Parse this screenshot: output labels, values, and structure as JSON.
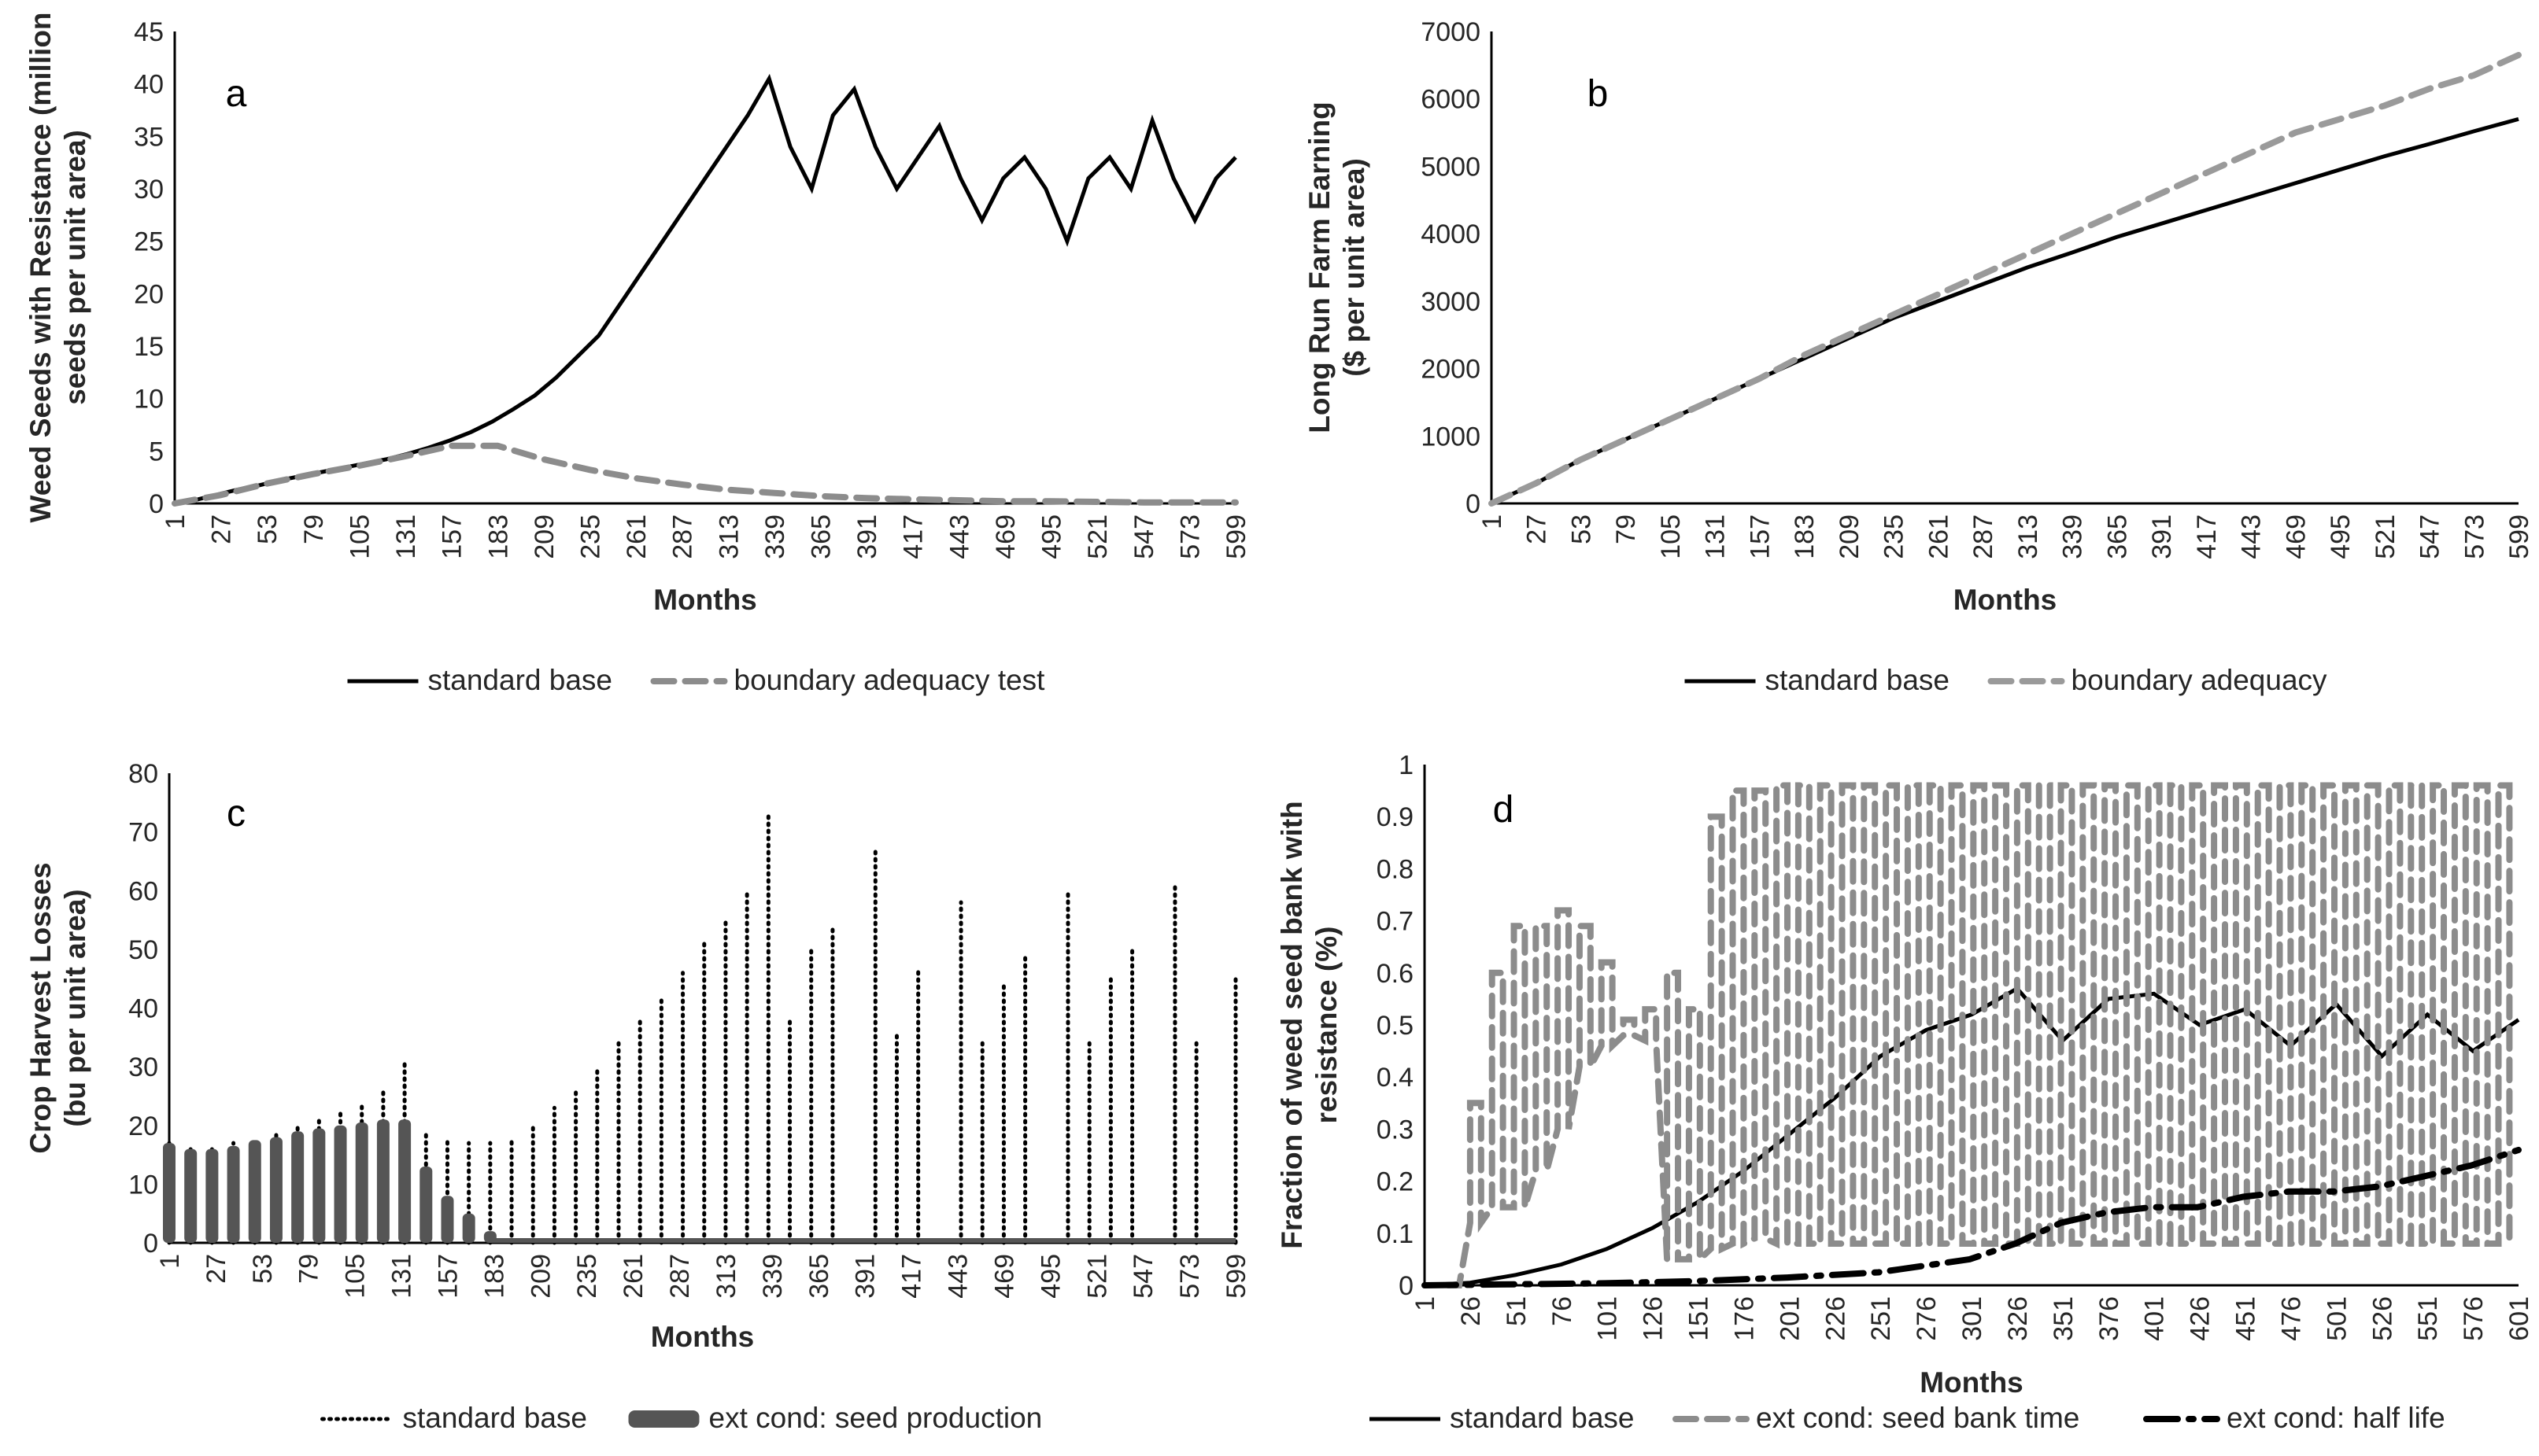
{
  "chart_data": [
    {
      "id": "a",
      "type": "line",
      "panel_label": "a",
      "xlabel": "Months",
      "ylabel": "Weed Seeds with Resistance (million seeds per unit area)",
      "ylabel_lines": [
        "Weed Seeds with Resistance (million",
        "seeds per unit area)"
      ],
      "xlim": [
        1,
        599
      ],
      "ylim": [
        0,
        45
      ],
      "yticks": [
        0,
        5,
        10,
        15,
        20,
        25,
        30,
        35,
        40,
        45
      ],
      "xticks": [
        1,
        27,
        53,
        79,
        105,
        131,
        157,
        183,
        209,
        235,
        261,
        287,
        313,
        339,
        365,
        391,
        417,
        443,
        469,
        495,
        521,
        547,
        573,
        599
      ],
      "legend_position": "bottom",
      "series": [
        {
          "name": "standard base",
          "style": "solid",
          "color": "#000000",
          "x": [
            1,
            12,
            24,
            36,
            48,
            60,
            72,
            84,
            96,
            108,
            120,
            132,
            144,
            156,
            168,
            180,
            192,
            204,
            216,
            228,
            240,
            252,
            264,
            276,
            288,
            300,
            312,
            324,
            336,
            348,
            360,
            372,
            384,
            396,
            408,
            420,
            432,
            444,
            456,
            468,
            480,
            492,
            504,
            516,
            528,
            540,
            552,
            564,
            576,
            588,
            599
          ],
          "y": [
            0,
            0.3,
            0.8,
            1.3,
            1.7,
            2.2,
            2.6,
            3.0,
            3.4,
            3.8,
            4.2,
            4.7,
            5.3,
            6.0,
            6.8,
            7.8,
            9.0,
            10.3,
            12.0,
            14.0,
            16.0,
            19.0,
            22.0,
            25.0,
            28.0,
            31.0,
            34.0,
            37.0,
            40.5,
            34.0,
            30.0,
            37.0,
            39.5,
            34.0,
            30.0,
            33.0,
            36.0,
            31.0,
            27.0,
            31.0,
            33.0,
            30.0,
            25.0,
            31.0,
            33.0,
            30.0,
            36.5,
            31.0,
            27.0,
            31.0,
            33.0
          ]
        },
        {
          "name": "boundary adequacy test",
          "style": "dashed",
          "color": "#8c8c8c",
          "x": [
            1,
            27,
            53,
            79,
            105,
            131,
            157,
            183,
            209,
            235,
            261,
            287,
            313,
            339,
            365,
            391,
            417,
            443,
            469,
            495,
            521,
            547,
            573,
            599
          ],
          "y": [
            0,
            0.8,
            1.9,
            2.8,
            3.6,
            4.5,
            5.5,
            5.5,
            4.2,
            3.2,
            2.4,
            1.8,
            1.3,
            1.0,
            0.7,
            0.5,
            0.4,
            0.3,
            0.2,
            0.2,
            0.15,
            0.1,
            0.1,
            0.1
          ]
        }
      ]
    },
    {
      "id": "b",
      "type": "line",
      "panel_label": "b",
      "xlabel": "Months",
      "ylabel": "Long Run Farm Earning ($ per unit area)",
      "ylabel_lines": [
        "Long Run Farm Earning",
        "($ per unit area)"
      ],
      "xlim": [
        1,
        599
      ],
      "ylim": [
        0,
        7000
      ],
      "yticks": [
        0,
        1000,
        2000,
        3000,
        4000,
        5000,
        6000,
        7000
      ],
      "xticks": [
        1,
        27,
        53,
        79,
        105,
        131,
        157,
        183,
        209,
        235,
        261,
        287,
        313,
        339,
        365,
        391,
        417,
        443,
        469,
        495,
        521,
        547,
        573,
        599
      ],
      "legend_position": "bottom",
      "series": [
        {
          "name": "standard base",
          "style": "solid",
          "color": "#000000",
          "x": [
            1,
            27,
            53,
            79,
            105,
            131,
            157,
            183,
            209,
            235,
            261,
            287,
            313,
            339,
            365,
            391,
            417,
            443,
            469,
            495,
            521,
            547,
            573,
            599
          ],
          "y": [
            0,
            300,
            650,
            950,
            1250,
            1550,
            1850,
            2150,
            2450,
            2750,
            3000,
            3250,
            3500,
            3720,
            3950,
            4150,
            4350,
            4550,
            4750,
            4950,
            5150,
            5330,
            5520,
            5700
          ]
        },
        {
          "name": "boundary adequacy",
          "style": "dashed",
          "color": "#9a9a9a",
          "x": [
            1,
            27,
            53,
            79,
            105,
            131,
            157,
            183,
            209,
            235,
            261,
            287,
            313,
            339,
            365,
            391,
            417,
            443,
            469,
            495,
            521,
            547,
            573,
            599
          ],
          "y": [
            0,
            300,
            650,
            950,
            1250,
            1550,
            1850,
            2200,
            2500,
            2800,
            3100,
            3400,
            3700,
            4000,
            4300,
            4600,
            4900,
            5200,
            5500,
            5700,
            5900,
            6150,
            6350,
            6650
          ]
        }
      ]
    },
    {
      "id": "c",
      "type": "bar",
      "panel_label": "c",
      "xlabel": "Months",
      "ylabel": "Crop Harvest Losses (bu per unit area)",
      "ylabel_lines": [
        "Crop Harvest Losses",
        "(bu per unit area)"
      ],
      "xlim": [
        1,
        599
      ],
      "ylim": [
        0,
        80
      ],
      "yticks": [
        0,
        10,
        20,
        30,
        40,
        50,
        60,
        70,
        80
      ],
      "xticks": [
        1,
        27,
        53,
        79,
        105,
        131,
        157,
        183,
        209,
        235,
        261,
        287,
        313,
        339,
        365,
        391,
        417,
        443,
        469,
        495,
        521,
        547,
        573,
        599
      ],
      "legend_position": "bottom",
      "series": [
        {
          "name": "standard base",
          "style": "dotted",
          "color": "#000000",
          "x": [
            1,
            13,
            25,
            37,
            49,
            61,
            73,
            85,
            97,
            109,
            121,
            133,
            145,
            157,
            169,
            181,
            193,
            205,
            217,
            229,
            241,
            253,
            265,
            277,
            289,
            301,
            313,
            325,
            337,
            349,
            361,
            373,
            385,
            397,
            409,
            421,
            433,
            445,
            457,
            469,
            481,
            493,
            505,
            517,
            529,
            541,
            553,
            565,
            577,
            589,
            599
          ],
          "y": [
            17,
            16,
            16.5,
            17,
            18,
            19,
            20,
            21,
            22.5,
            24,
            26,
            31,
            19,
            18,
            17,
            17,
            18,
            20,
            23,
            26,
            30,
            34,
            38,
            42,
            46,
            51,
            55,
            60,
            73,
            38,
            50,
            54,
            0,
            67,
            36,
            47,
            0,
            58,
            34,
            44,
            49,
            0,
            60,
            34,
            45,
            50,
            0,
            61,
            34,
            0,
            45
          ]
        },
        {
          "name": "ext cond: seed production",
          "style": "bar",
          "color": "#555555",
          "x": [
            1,
            13,
            25,
            37,
            49,
            61,
            73,
            85,
            97,
            109,
            121,
            133,
            145,
            157,
            169,
            181
          ],
          "y": [
            17,
            16,
            16,
            16.5,
            17.5,
            18,
            19,
            19.5,
            20,
            20.5,
            21,
            21,
            13,
            8,
            5,
            2
          ]
        }
      ]
    },
    {
      "id": "d",
      "type": "line",
      "panel_label": "d",
      "xlabel": "Months",
      "ylabel": "Fraction of weed seed bank with resistance (%)",
      "ylabel_lines": [
        "Fraction of weed seed bank with",
        "resistance (%)"
      ],
      "xlim": [
        1,
        601
      ],
      "ylim": [
        0,
        1
      ],
      "yticks": [
        0,
        0.1,
        0.2,
        0.3,
        0.4,
        0.5,
        0.6,
        0.7,
        0.8,
        0.9,
        1
      ],
      "xticks": [
        1,
        26,
        51,
        76,
        101,
        126,
        151,
        176,
        201,
        226,
        251,
        276,
        301,
        326,
        351,
        376,
        401,
        426,
        451,
        476,
        501,
        526,
        551,
        576,
        601
      ],
      "legend_position": "bottom",
      "series": [
        {
          "name": "standard base",
          "style": "solid",
          "color": "#000000",
          "x": [
            1,
            26,
            51,
            76,
            101,
            126,
            151,
            176,
            201,
            226,
            251,
            276,
            301,
            326,
            351,
            376,
            401,
            426,
            451,
            476,
            501,
            526,
            551,
            576,
            601
          ],
          "y": [
            0,
            0.005,
            0.02,
            0.04,
            0.07,
            0.11,
            0.16,
            0.22,
            0.29,
            0.36,
            0.44,
            0.49,
            0.52,
            0.57,
            0.47,
            0.55,
            0.56,
            0.5,
            0.53,
            0.46,
            0.54,
            0.44,
            0.52,
            0.45,
            0.51
          ]
        },
        {
          "name": "ext cond: seed bank time",
          "style": "dashed",
          "color": "#8c8c8c",
          "cycle_x": [
            14,
            26,
            38,
            50,
            62,
            74,
            86,
            98,
            110,
            122,
            134,
            146,
            158,
            170,
            182,
            194,
            206,
            218,
            230,
            242,
            254,
            266,
            278,
            290,
            302,
            314,
            326,
            338,
            350,
            362,
            374,
            386,
            398,
            410,
            422,
            434,
            446,
            458,
            470,
            482,
            494,
            506,
            518,
            530,
            542,
            554,
            566,
            578,
            590
          ],
          "cycle_high": [
            0.0,
            0.35,
            0.6,
            0.69,
            0.69,
            0.72,
            0.69,
            0.62,
            0.51,
            0.53,
            0.6,
            0.53,
            0.9,
            0.95,
            0.95,
            0.96,
            0.96,
            0.96,
            0.96,
            0.96,
            0.96,
            0.96,
            0.96,
            0.96,
            0.96,
            0.96,
            0.96,
            0.96,
            0.96,
            0.96,
            0.96,
            0.96,
            0.96,
            0.96,
            0.96,
            0.96,
            0.96,
            0.96,
            0.96,
            0.96,
            0.96,
            0.96,
            0.96,
            0.96,
            0.96,
            0.96,
            0.96,
            0.96,
            0.96
          ],
          "cycle_low": [
            0.0,
            0.12,
            0.15,
            0.15,
            0.22,
            0.3,
            0.42,
            0.46,
            0.48,
            0.47,
            0.05,
            0.05,
            0.07,
            0.08,
            0.09,
            0.08,
            0.08,
            0.08,
            0.08,
            0.08,
            0.08,
            0.08,
            0.08,
            0.08,
            0.08,
            0.08,
            0.08,
            0.08,
            0.08,
            0.08,
            0.08,
            0.08,
            0.08,
            0.08,
            0.08,
            0.08,
            0.08,
            0.08,
            0.08,
            0.08,
            0.08,
            0.08,
            0.08,
            0.08,
            0.08,
            0.08,
            0.08,
            0.08,
            0.08
          ]
        },
        {
          "name": "ext cond: half life",
          "style": "dash-dot",
          "color": "#000000",
          "x": [
            1,
            50,
            100,
            150,
            200,
            250,
            300,
            325,
            350,
            375,
            400,
            425,
            450,
            475,
            500,
            525,
            550,
            575,
            601
          ],
          "y": [
            0,
            0.002,
            0.004,
            0.008,
            0.015,
            0.025,
            0.05,
            0.08,
            0.12,
            0.14,
            0.15,
            0.15,
            0.17,
            0.18,
            0.18,
            0.19,
            0.21,
            0.23,
            0.26
          ]
        }
      ]
    }
  ]
}
